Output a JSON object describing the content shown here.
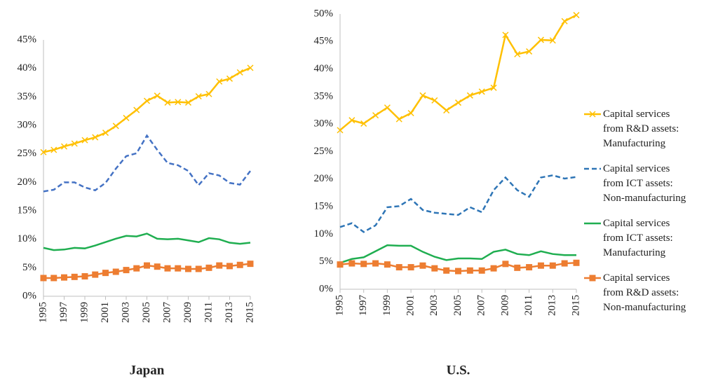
{
  "chart_data": [
    {
      "type": "line",
      "title": "Japan",
      "x": [
        1995,
        1996,
        1997,
        1998,
        1999,
        2000,
        2001,
        2002,
        2003,
        2004,
        2005,
        2006,
        2007,
        2008,
        2009,
        2010,
        2011,
        2012,
        2013,
        2014,
        2015
      ],
      "xlim": [
        1995,
        2015
      ],
      "xticks": [
        1995,
        1997,
        1999,
        2001,
        2003,
        2005,
        2007,
        2009,
        2011,
        2013,
        2015
      ],
      "ylim": [
        0,
        45
      ],
      "yticks": [
        {
          "value": 0,
          "label": "0%"
        },
        {
          "value": 5,
          "label": "5%"
        },
        {
          "value": 10,
          "label": "10%"
        },
        {
          "value": 15,
          "label": "15%"
        },
        {
          "value": 20,
          "label": "20%"
        },
        {
          "value": 25,
          "label": "25%"
        },
        {
          "value": 30,
          "label": "30%"
        },
        {
          "value": 35,
          "label": "35%"
        },
        {
          "value": 40,
          "label": "40%"
        },
        {
          "value": 45,
          "label": "45%"
        }
      ],
      "grid": false,
      "series": [
        {
          "name": "Capital services from R&D assets: Manufacturing",
          "color": "#FFC000",
          "marker": "x",
          "style": "solid",
          "values": [
            25.3,
            25.7,
            26.3,
            26.8,
            27.4,
            27.9,
            28.7,
            29.9,
            31.3,
            32.7,
            34.3,
            35.2,
            34.0,
            34.1,
            34.0,
            35.1,
            35.5,
            37.7,
            38.2,
            39.3,
            40.1
          ]
        },
        {
          "name": "Capital services from ICT assets: Non-manufacturing",
          "color": "#4472C4",
          "marker": "none",
          "style": "dashed",
          "values": [
            18.4,
            18.7,
            20.0,
            20.0,
            19.1,
            18.6,
            19.9,
            22.4,
            24.6,
            25.1,
            28.2,
            25.7,
            23.4,
            23.0,
            22.0,
            19.5,
            21.6,
            21.2,
            19.9,
            19.6,
            22.0
          ]
        },
        {
          "name": "Capital services from ICT assets: Manufacturing",
          "color": "#1FAE50",
          "marker": "none",
          "style": "solid",
          "values": [
            8.5,
            8.1,
            8.2,
            8.5,
            8.4,
            8.9,
            9.5,
            10.1,
            10.6,
            10.5,
            11.0,
            10.1,
            10.0,
            10.1,
            9.8,
            9.5,
            10.2,
            10.0,
            9.4,
            9.2,
            9.4
          ]
        },
        {
          "name": "Capital services from R&D assets: Non-manufacturing",
          "color": "#ED7D31",
          "marker": "square",
          "style": "solid",
          "values": [
            3.2,
            3.2,
            3.3,
            3.4,
            3.5,
            3.8,
            4.1,
            4.3,
            4.6,
            4.9,
            5.4,
            5.2,
            4.9,
            4.9,
            4.8,
            4.8,
            5.0,
            5.4,
            5.3,
            5.5,
            5.7
          ]
        }
      ]
    },
    {
      "type": "line",
      "title": "U.S.",
      "x": [
        1995,
        1996,
        1997,
        1998,
        1999,
        2000,
        2001,
        2002,
        2003,
        2004,
        2005,
        2006,
        2007,
        2008,
        2009,
        2010,
        2011,
        2012,
        2013,
        2014,
        2015
      ],
      "xlim": [
        1995,
        2015
      ],
      "xticks": [
        1995,
        1997,
        1999,
        2001,
        2003,
        2005,
        2007,
        2009,
        2011,
        2013,
        2015
      ],
      "ylim": [
        0,
        50
      ],
      "yticks": [
        {
          "value": 0,
          "label": "0%"
        },
        {
          "value": 5,
          "label": "5%"
        },
        {
          "value": 10,
          "label": "10%"
        },
        {
          "value": 15,
          "label": "15%"
        },
        {
          "value": 20,
          "label": "20%"
        },
        {
          "value": 25,
          "label": "25%"
        },
        {
          "value": 30,
          "label": "30%"
        },
        {
          "value": 35,
          "label": "35%"
        },
        {
          "value": 40,
          "label": "40%"
        },
        {
          "value": 45,
          "label": "45%"
        },
        {
          "value": 50,
          "label": "50%"
        }
      ],
      "grid": false,
      "legend": "right",
      "series": [
        {
          "name": "Capital services from R&D assets: Manufacturing",
          "color": "#FFC000",
          "marker": "x",
          "style": "solid",
          "values": [
            28.9,
            30.7,
            30.1,
            31.6,
            33.0,
            30.9,
            32.0,
            35.2,
            34.3,
            32.5,
            33.9,
            35.2,
            35.9,
            36.6,
            46.2,
            42.7,
            43.2,
            45.3,
            45.2,
            48.7,
            49.8
          ]
        },
        {
          "name": "Capital services from ICT assets: Non-manufacturing",
          "color": "#2E75B6",
          "marker": "none",
          "style": "dashed",
          "values": [
            11.3,
            12.0,
            10.4,
            11.6,
            14.9,
            15.1,
            16.4,
            14.4,
            13.9,
            13.7,
            13.5,
            14.9,
            14.0,
            18.0,
            20.3,
            18.0,
            16.8,
            20.3,
            20.7,
            20.1,
            20.4
          ]
        },
        {
          "name": "Capital services from ICT assets: Manufacturing",
          "color": "#1FAE50",
          "marker": "none",
          "style": "solid",
          "values": [
            4.8,
            5.5,
            5.8,
            6.9,
            8.0,
            7.9,
            7.9,
            6.8,
            5.9,
            5.3,
            5.6,
            5.6,
            5.5,
            6.8,
            7.2,
            6.4,
            6.2,
            6.9,
            6.4,
            6.2,
            6.2
          ]
        },
        {
          "name": "Capital services from R&D assets: Non-manufacturing",
          "color": "#ED7D31",
          "marker": "square",
          "style": "solid",
          "values": [
            4.5,
            4.7,
            4.6,
            4.7,
            4.5,
            4.0,
            4.0,
            4.3,
            3.8,
            3.4,
            3.3,
            3.4,
            3.4,
            3.8,
            4.6,
            3.9,
            4.0,
            4.3,
            4.3,
            4.7,
            4.8
          ]
        }
      ]
    }
  ]
}
